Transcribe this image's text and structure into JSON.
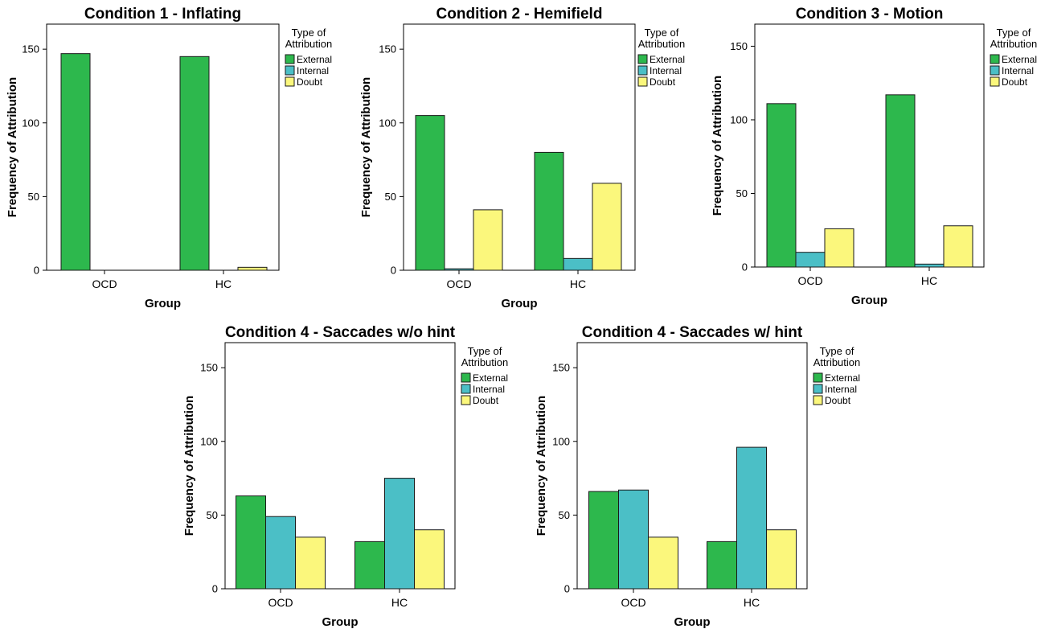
{
  "chart_data": [
    {
      "type": "bar",
      "title": "Condition 1 - Inflating",
      "xlabel": "Group",
      "ylabel": "Frequency of Attribution",
      "ylim": [
        0,
        167
      ],
      "yticks": [
        0,
        50,
        100,
        150
      ],
      "categories": [
        "OCD",
        "HC"
      ],
      "legend_title": [
        "Type of",
        "Attribution"
      ],
      "legend_position": "top-right, outside",
      "series": [
        {
          "name": "External",
          "values": [
            147,
            145
          ]
        },
        {
          "name": "Internal",
          "values": [
            0,
            0
          ]
        },
        {
          "name": "Doubt",
          "values": [
            0,
            2
          ]
        }
      ]
    },
    {
      "type": "bar",
      "title": "Condition 2 - Hemifield",
      "xlabel": "Group",
      "ylabel": "Frequency of Attribution",
      "ylim": [
        0,
        167
      ],
      "yticks": [
        0,
        50,
        100,
        150
      ],
      "categories": [
        "OCD",
        "HC"
      ],
      "legend_title": [
        "Type of",
        "Attribution"
      ],
      "legend_position": "top-right, outside",
      "series": [
        {
          "name": "External",
          "values": [
            105,
            80
          ]
        },
        {
          "name": "Internal",
          "values": [
            1,
            8
          ]
        },
        {
          "name": "Doubt",
          "values": [
            41,
            59
          ]
        }
      ]
    },
    {
      "type": "bar",
      "title": "Condition 3 - Motion",
      "xlabel": "Group",
      "ylabel": "Frequency of Attribution",
      "ylim": [
        0,
        165
      ],
      "yticks": [
        0,
        50,
        100,
        150
      ],
      "categories": [
        "OCD",
        "HC"
      ],
      "legend_title": [
        "Type of",
        "Attribution"
      ],
      "legend_position": "top-right, outside",
      "series": [
        {
          "name": "External",
          "values": [
            111,
            117
          ]
        },
        {
          "name": "Internal",
          "values": [
            10,
            2
          ]
        },
        {
          "name": "Doubt",
          "values": [
            26,
            28
          ]
        }
      ]
    },
    {
      "type": "bar",
      "title": "Condition 4 - Saccades w/o hint",
      "xlabel": "Group",
      "ylabel": "Frequency of Attribution",
      "ylim": [
        0,
        167
      ],
      "yticks": [
        0,
        50,
        100,
        150
      ],
      "categories": [
        "OCD",
        "HC"
      ],
      "legend_title": [
        "Type of",
        "Attribution"
      ],
      "legend_position": "top-right, outside",
      "series": [
        {
          "name": "External",
          "values": [
            63,
            32
          ]
        },
        {
          "name": "Internal",
          "values": [
            49,
            75
          ]
        },
        {
          "name": "Doubt",
          "values": [
            35,
            40
          ]
        }
      ]
    },
    {
      "type": "bar",
      "title": "Condition 4 - Saccades w/ hint",
      "xlabel": "Group",
      "ylabel": "Frequency of Attribution",
      "ylim": [
        0,
        167
      ],
      "yticks": [
        0,
        50,
        100,
        150
      ],
      "categories": [
        "OCD",
        "HC"
      ],
      "legend_title": [
        "Type of",
        "Attribution"
      ],
      "legend_position": "top-right, outside",
      "series": [
        {
          "name": "External",
          "values": [
            66,
            32
          ]
        },
        {
          "name": "Internal",
          "values": [
            67,
            96
          ]
        },
        {
          "name": "Doubt",
          "values": [
            35,
            40
          ]
        }
      ]
    }
  ],
  "colors": {
    "External": "#2db84d",
    "Internal": "#4bbfc6",
    "Doubt": "#fbf77c",
    "bar_stroke": "#1a1a1a",
    "axis": "#000000"
  }
}
